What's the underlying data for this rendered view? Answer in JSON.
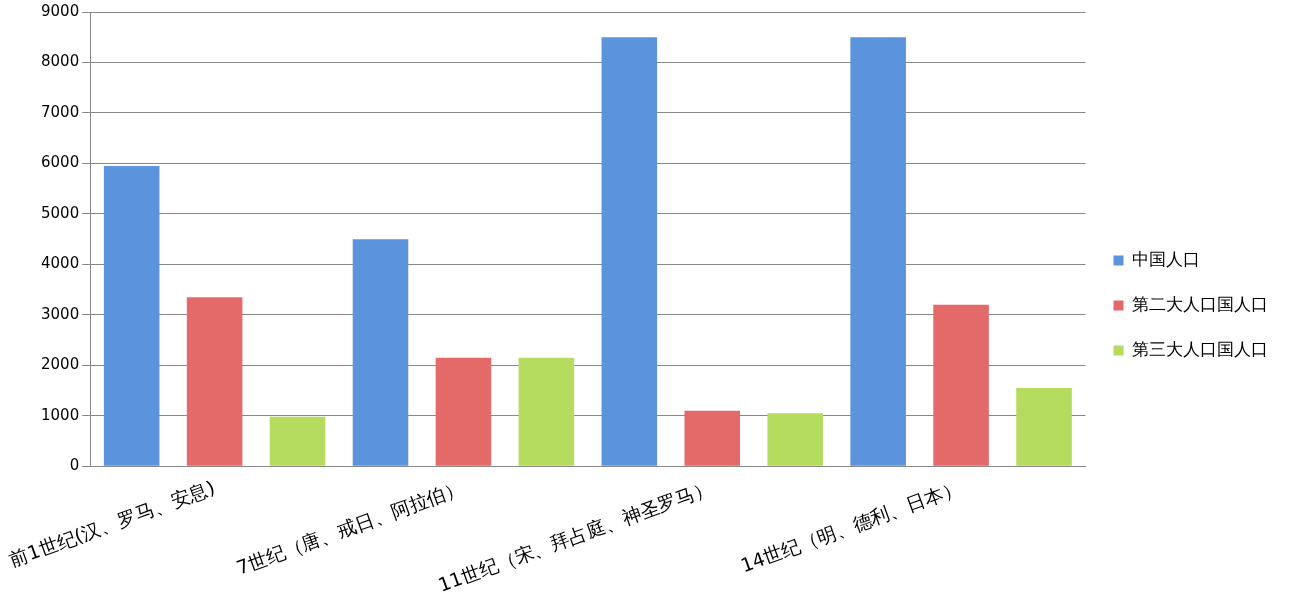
{
  "chart_data": {
    "type": "bar",
    "categories": [
      "前1世纪(汉、罗马、安息)",
      "7世纪（唐、戒日、阿拉伯）",
      "11世纪（宋、拜占庭、神圣罗马）",
      "14世纪（明、德利、日本）"
    ],
    "series": [
      {
        "name": "中国人口",
        "color": "#5b93dc",
        "values": [
          5950,
          4500,
          8500,
          8500
        ]
      },
      {
        "name": "第二大人口国人口",
        "color": "#e46a6a",
        "values": [
          3350,
          2150,
          1100,
          3200
        ]
      },
      {
        "name": "第三大人口国人口",
        "color": "#b5dc5e",
        "values": [
          980,
          2150,
          1050,
          1550
        ]
      }
    ],
    "ylim": [
      0,
      9000
    ],
    "yticks": [
      0,
      1000,
      2000,
      3000,
      4000,
      5000,
      6000,
      7000,
      8000,
      9000
    ],
    "grid": "y",
    "legend": "right"
  }
}
